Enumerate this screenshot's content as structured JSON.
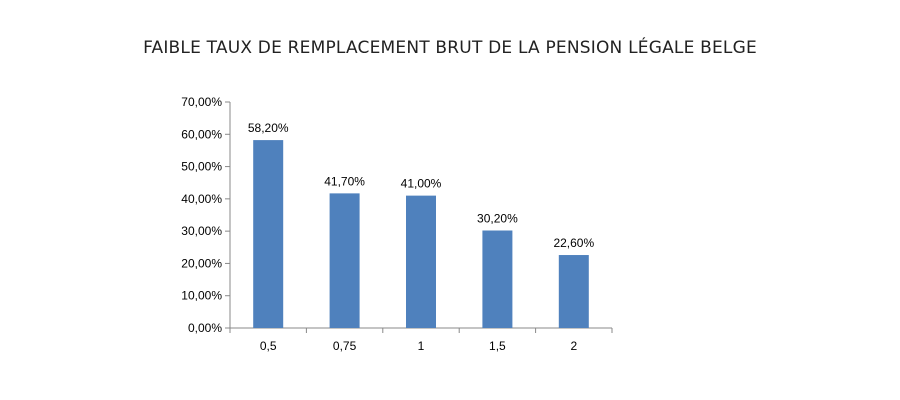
{
  "chart_data": {
    "type": "bar",
    "title": "FAIBLE TAUX DE REMPLACEMENT BRUT DE LA PENSION LÉGALE BELGE",
    "categories": [
      "0,5",
      "0,75",
      "1",
      "1,5",
      "2"
    ],
    "values": [
      58.2,
      41.7,
      41.0,
      30.2,
      22.6
    ],
    "value_labels": [
      "58,20%",
      "41,70%",
      "41,00%",
      "30,20%",
      "22,60%"
    ],
    "y_ticks": [
      0,
      10,
      20,
      30,
      40,
      50,
      60,
      70
    ],
    "y_tick_labels": [
      "0,00%",
      "10,00%",
      "20,00%",
      "30,00%",
      "40,00%",
      "50,00%",
      "60,00%",
      "70,00%"
    ],
    "ylim": [
      0,
      70
    ],
    "bar_color": "#4f81bd",
    "grid": false,
    "legend": "none"
  }
}
